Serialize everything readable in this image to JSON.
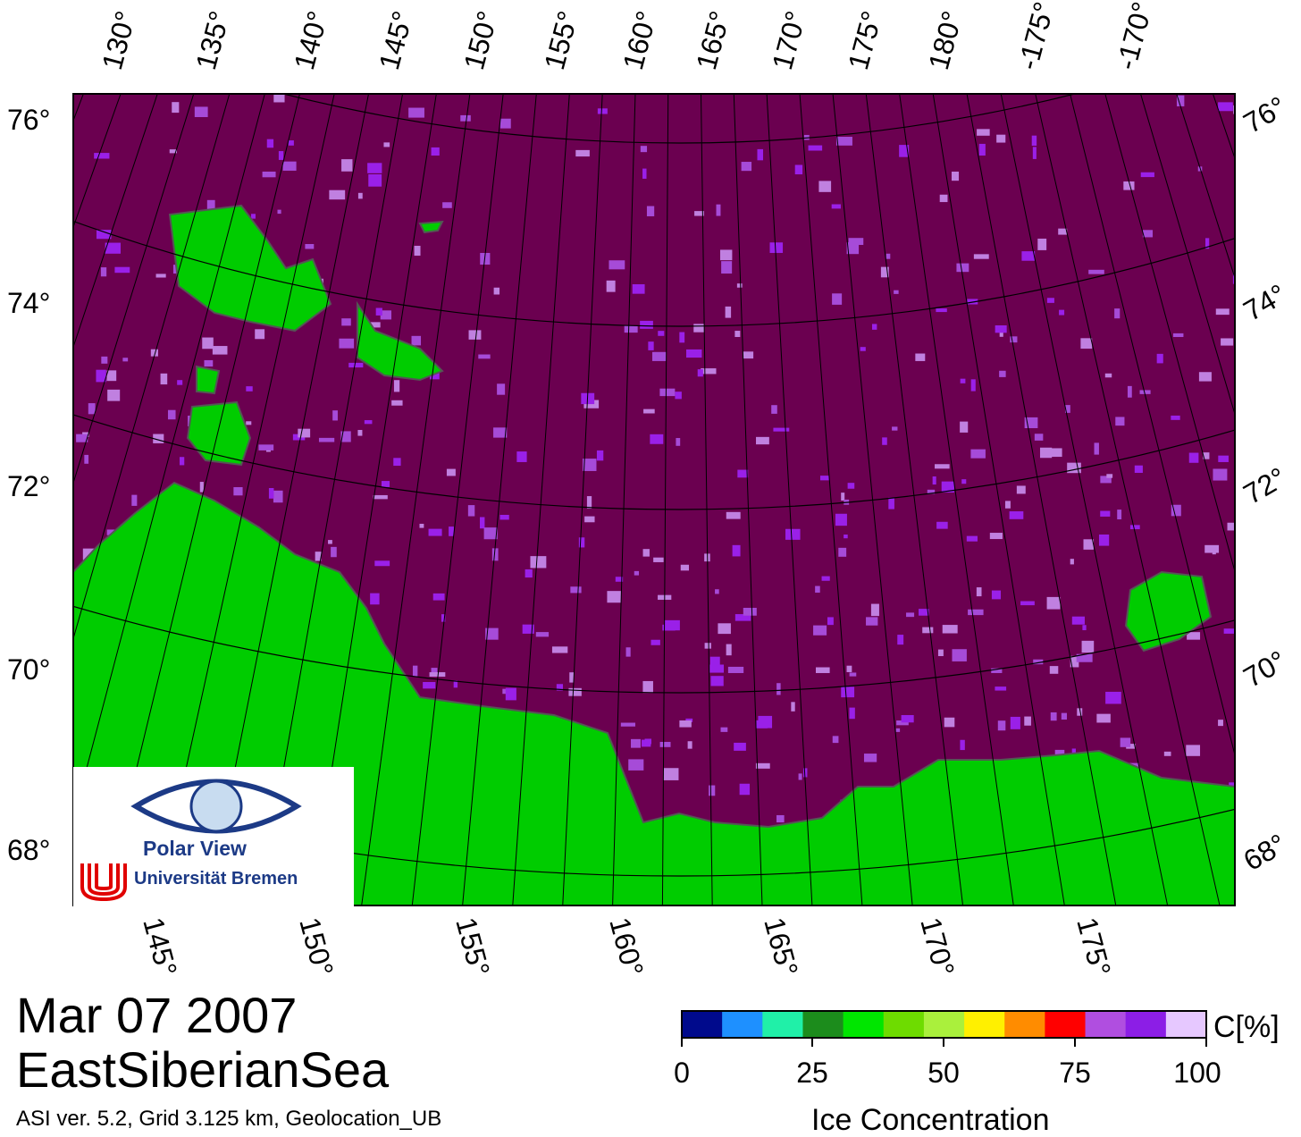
{
  "title": {
    "date": "Mar 07 2007",
    "region": "EastSiberianSea",
    "meta": "ASI ver. 5.2,  Grid 3.125 km, Geolocation_UB"
  },
  "map": {
    "top_lon_labels": [
      "130°",
      "135°",
      "140°",
      "145°",
      "150°",
      "155°",
      "160°",
      "165°",
      "170°",
      "175°",
      "180°",
      "-175°",
      "-170°"
    ],
    "bottom_lon_labels": [
      "145°",
      "150°",
      "155°",
      "160°",
      "165°",
      "170°",
      "175°"
    ],
    "left_lat_labels": [
      "76°",
      "74°",
      "72°",
      "70°",
      "68°"
    ],
    "right_lat_labels": [
      "76°",
      "74°",
      "72°",
      "70°",
      "68°"
    ],
    "colors": {
      "ocean": "#6b0050",
      "land": "#00cc00",
      "coast": "#777777",
      "ice_light": "#9a20e8",
      "ice_pale": "#c080e0"
    }
  },
  "logo": {
    "line1": "Polar View",
    "line2": "Universität Bremen"
  },
  "colorbar": {
    "title": "Ice Concentration",
    "unit": "C[%]",
    "ticks": [
      "0",
      "25",
      "50",
      "75",
      "100"
    ],
    "colors": [
      "#000a8c",
      "#1e90ff",
      "#20f0a8",
      "#1c8c1c",
      "#00e600",
      "#6edc00",
      "#aaf03c",
      "#fff000",
      "#ff8c00",
      "#ff0000",
      "#b04ee0",
      "#8c1ee6",
      "#e6c8ff"
    ]
  }
}
